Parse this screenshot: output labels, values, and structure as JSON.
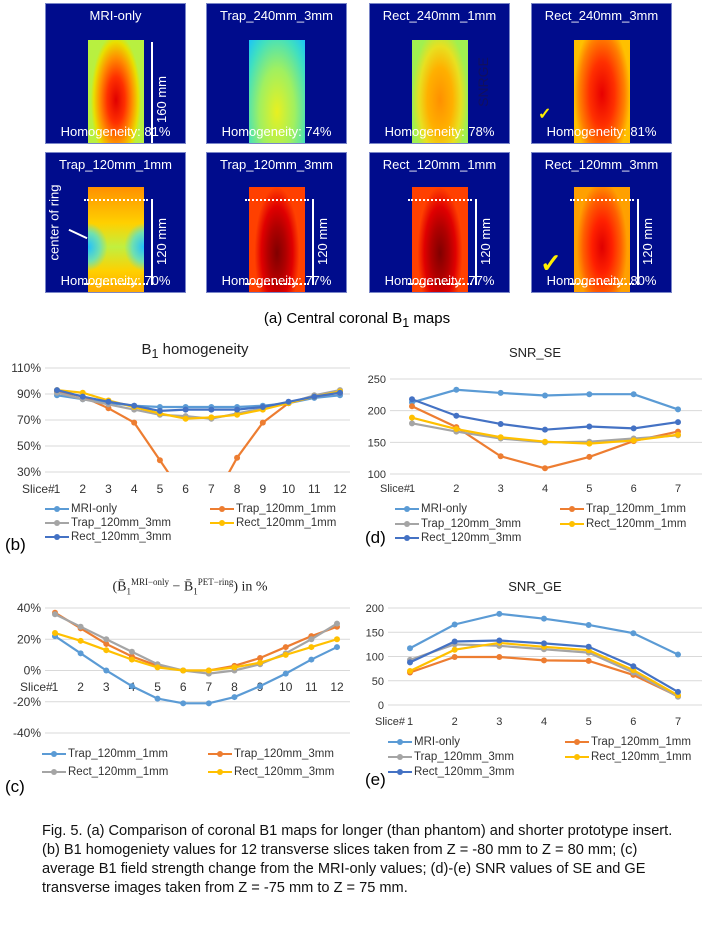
{
  "maps": {
    "row1": [
      {
        "title": "MRI-only",
        "homogeneity": "Homogeneity: 81%",
        "dimension": "160 mm",
        "style": "mri"
      },
      {
        "title": "Trap_240mm_3mm",
        "homogeneity": "Homogeneity: 74%",
        "style": "trap240"
      },
      {
        "title": "Rect_240mm_1mm",
        "homogeneity": "Homogeneity: 78%",
        "overlay": "SNRGE",
        "style": "rect240_1"
      },
      {
        "title": "Rect_240mm_3mm",
        "homogeneity": "Homogeneity: 81%",
        "check": "✓",
        "style": "rect240_3"
      }
    ],
    "row2": [
      {
        "title": "Trap_120mm_1mm",
        "homogeneity": "Homogeneity: 70%",
        "dimension": "120 mm",
        "annotation": "center of ring",
        "style": "trap120_1"
      },
      {
        "title": "Trap_120mm_3mm",
        "homogeneity": "Homogeneity: 77%",
        "dimension": "120 mm",
        "style": "dark"
      },
      {
        "title": "Rect_120mm_1mm",
        "homogeneity": "Homogeneity: 77%",
        "dimension": "120 mm",
        "style": "dark"
      },
      {
        "title": "Rect_120mm_3mm",
        "homogeneity": "Homogeneity: 80%",
        "dimension": "120 mm",
        "check": "✓",
        "style": "rect120_3"
      }
    ],
    "caption": "(a) Central coronal B1 maps",
    "caption_prefix": "(a) Central coronal B",
    "caption_sub": "1",
    "caption_suffix": " maps"
  },
  "colors": {
    "MRI-only": "#5B9BD5",
    "orange": "#ED7D31",
    "gray": "#A5A5A5",
    "yellow": "#FFC000",
    "darkblue": "#4472C4",
    "map_bg": "#000C8C"
  },
  "chart_data": [
    {
      "id": "b",
      "panel_label": "(b)",
      "type": "line",
      "title": "B1 homogeneity",
      "title_main": "B",
      "title_sub": "1",
      "title_rest": " homogeneity",
      "xlabel": "Slice#",
      "categories": [
        "1",
        "2",
        "3",
        "4",
        "5",
        "6",
        "7",
        "8",
        "9",
        "10",
        "11",
        "12"
      ],
      "ylim": [
        30,
        110
      ],
      "yticks": [
        30,
        50,
        70,
        90,
        110
      ],
      "ytick_labels": [
        "30%",
        "50%",
        "70%",
        "90%",
        "110%"
      ],
      "grid": true,
      "legend": "bottom",
      "series": [
        {
          "name": "MRI-only",
          "color": "#5B9BD5",
          "values": [
            89,
            86,
            83,
            81,
            80,
            80,
            80,
            80,
            81,
            83,
            87,
            89
          ]
        },
        {
          "name": "Trap_120mm_1mm",
          "color": "#ED7D31",
          "values": [
            92,
            88,
            79,
            68,
            39,
            10,
            5,
            41,
            68,
            83,
            88,
            91
          ]
        },
        {
          "name": "Trap_120mm_3mm",
          "color": "#A5A5A5",
          "values": [
            91,
            86,
            82,
            78,
            74,
            73,
            71,
            75,
            79,
            83,
            89,
            93
          ]
        },
        {
          "name": "Rect_120mm_1mm",
          "color": "#FFC000",
          "values": [
            93,
            91,
            85,
            80,
            75,
            71,
            72,
            74,
            78,
            83,
            88,
            92
          ]
        },
        {
          "name": "Rect_120mm_3mm",
          "color": "#4472C4",
          "values": [
            93,
            88,
            84,
            81,
            77,
            78,
            78,
            78,
            80,
            84,
            88,
            91
          ]
        }
      ]
    },
    {
      "id": "d",
      "panel_label": "(d)",
      "type": "line",
      "title": "SNR_SE",
      "xlabel": "Slice#",
      "categories": [
        "1",
        "2",
        "3",
        "4",
        "5",
        "6",
        "7"
      ],
      "ylim": [
        100,
        250
      ],
      "yticks": [
        100,
        150,
        200,
        250
      ],
      "ytick_labels": [
        "100",
        "150",
        "200",
        "250"
      ],
      "grid": true,
      "legend": "bottom",
      "series": [
        {
          "name": "MRI-only",
          "color": "#5B9BD5",
          "values": [
            213,
            233,
            228,
            224,
            226,
            226,
            202
          ]
        },
        {
          "name": "Trap_120mm_1mm",
          "color": "#ED7D31",
          "values": [
            207,
            174,
            128,
            109,
            127,
            152,
            167
          ]
        },
        {
          "name": "Trap_120mm_3mm",
          "color": "#A5A5A5",
          "values": [
            180,
            167,
            156,
            150,
            151,
            156,
            161
          ]
        },
        {
          "name": "Rect_120mm_1mm",
          "color": "#FFC000",
          "values": [
            189,
            171,
            158,
            151,
            148,
            153,
            162
          ]
        },
        {
          "name": "Rect_120mm_3mm",
          "color": "#4472C4",
          "values": [
            218,
            192,
            179,
            170,
            175,
            172,
            182
          ]
        }
      ]
    },
    {
      "id": "c",
      "panel_label": "(c)",
      "type": "line",
      "title": "(B̄1^MRI−only − B̄1^PET−ring) in %",
      "title_parts": {
        "open": "(B̄",
        "sub1": "1",
        "sup1": "MRI−only",
        "mid": " − B̄",
        "sub2": "1",
        "sup2": "PET−ring",
        "close": ") in %"
      },
      "xlabel": "Slice#",
      "categories": [
        "1",
        "2",
        "3",
        "4",
        "5",
        "6",
        "7",
        "8",
        "9",
        "10",
        "11",
        "12"
      ],
      "ylim": [
        -40,
        40
      ],
      "yticks": [
        -40,
        -20,
        0,
        20,
        40
      ],
      "ytick_labels": [
        "-40%",
        "-20%",
        "0%",
        "20%",
        "40%"
      ],
      "grid": true,
      "legend": "bottom",
      "series": [
        {
          "name": "Trap_120mm_1mm",
          "color": "#5B9BD5",
          "values": [
            22,
            11,
            0,
            -10,
            -18,
            -21,
            -21,
            -17,
            -10,
            -2,
            7,
            15
          ]
        },
        {
          "name": "Trap_120mm_3mm",
          "color": "#ED7D31",
          "values": [
            37,
            27,
            17,
            9,
            3,
            0,
            0,
            3,
            8,
            15,
            22,
            28
          ]
        },
        {
          "name": "Rect_120mm_1mm",
          "color": "#A5A5A5",
          "values": [
            36,
            28,
            20,
            12,
            4,
            0,
            -2,
            0,
            4,
            11,
            20,
            30
          ]
        },
        {
          "name": "Rect_120mm_3mm",
          "color": "#FFC000",
          "values": [
            24,
            19,
            13,
            7,
            2,
            0,
            0,
            2,
            5,
            10,
            15,
            20
          ]
        }
      ]
    },
    {
      "id": "e",
      "panel_label": "(e)",
      "type": "line",
      "title": "SNR_GE",
      "xlabel": "Slice#",
      "categories": [
        "1",
        "2",
        "3",
        "4",
        "5",
        "6",
        "7"
      ],
      "ylim": [
        0,
        200
      ],
      "yticks": [
        0,
        50,
        100,
        150,
        200
      ],
      "ytick_labels": [
        "0",
        "50",
        "100",
        "150",
        "200"
      ],
      "grid": true,
      "legend": "bottom",
      "series": [
        {
          "name": "MRI-only",
          "color": "#5B9BD5",
          "values": [
            117,
            166,
            188,
            178,
            165,
            148,
            104
          ]
        },
        {
          "name": "Trap_120mm_1mm",
          "color": "#ED7D31",
          "values": [
            67,
            99,
            99,
            92,
            91,
            62,
            18
          ]
        },
        {
          "name": "Trap_120mm_3mm",
          "color": "#A5A5A5",
          "values": [
            93,
            125,
            122,
            115,
            108,
            67,
            17
          ]
        },
        {
          "name": "Rect_120mm_1mm",
          "color": "#FFC000",
          "values": [
            70,
            114,
            128,
            120,
            113,
            72,
            20
          ]
        },
        {
          "name": "Rect_120mm_3mm",
          "color": "#4472C4",
          "values": [
            88,
            131,
            133,
            127,
            120,
            80,
            27
          ]
        }
      ]
    }
  ],
  "figure_caption": "Fig. 5. (a) Comparison of coronal B1 maps for longer (than phantom) and shorter prototype insert. (b) B1 homogeniety values for 12 transverse slices taken from Z = -80 mm to Z = 80 mm; (c) average B1 field strength change from the MRI-only values; (d)-(e) SNR values of SE and GE transverse images taken from Z = -75 mm to Z = 75 mm."
}
